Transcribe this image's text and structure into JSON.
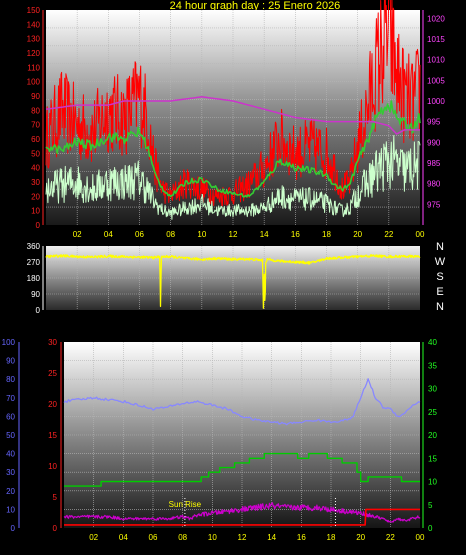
{
  "title": "24 hour graph day : 25 Enero 2026",
  "colors": {
    "gust": "#ff0000",
    "wind_avg": "#33cc33",
    "wind_low": "#ccffcc",
    "pressure": "#cc33cc",
    "direction": "#ffff00",
    "humidity": "#8888ff",
    "rain": "#ff3333",
    "temp": "#00cc00",
    "solar": "#cc00cc",
    "uv": "#ff0000",
    "time_axis": "#ffff00",
    "axis_red": "#ff2222",
    "axis_magenta": "#ff44ff",
    "axis_white": "#ffffff",
    "axis_blue": "#6666ff",
    "axis_green": "#22ff22"
  },
  "x_ticks": [
    "02",
    "04",
    "06",
    "08",
    "10",
    "12",
    "14",
    "16",
    "18",
    "20",
    "22",
    "00"
  ],
  "compass": [
    "N",
    "W",
    "S",
    "E",
    "N"
  ],
  "annotation": "Sun Rise",
  "chart_data": [
    {
      "type": "line",
      "x_range": [
        0,
        24
      ],
      "y_left_ticks": [
        "0",
        "10",
        "20",
        "30",
        "40",
        "50",
        "60",
        "70",
        "80",
        "90",
        "100",
        "110",
        "120",
        "130",
        "140",
        "150"
      ],
      "y_left_range": [
        0,
        150
      ],
      "y_right_ticks": [
        "975",
        "980",
        "985",
        "990",
        "995",
        "1000",
        "1005",
        "1010",
        "1015",
        "1020"
      ],
      "y_right_range": [
        970,
        1022
      ],
      "series": [
        {
          "key": "gust",
          "axis": "left",
          "x": [
            0,
            1,
            2,
            3,
            4,
            5,
            6,
            6.5,
            7,
            7.5,
            8,
            9,
            10,
            11,
            12,
            13,
            14,
            15,
            16,
            17,
            18,
            18.5,
            19,
            19.5,
            20,
            20.5,
            21,
            21.5,
            22,
            22.5,
            23,
            23.5,
            24
          ],
          "values": [
            60,
            80,
            70,
            65,
            80,
            75,
            90,
            75,
            40,
            25,
            20,
            30,
            25,
            20,
            22,
            28,
            40,
            60,
            50,
            55,
            50,
            40,
            25,
            30,
            55,
            75,
            100,
            120,
            135,
            105,
            90,
            85,
            95
          ]
        },
        {
          "key": "wind_avg",
          "axis": "left",
          "x": [
            0,
            1,
            2,
            3,
            4,
            5,
            6,
            6.5,
            7,
            7.5,
            8,
            9,
            10,
            11,
            12,
            13,
            14,
            15,
            16,
            17,
            18,
            18.5,
            19,
            19.5,
            20,
            20.5,
            21,
            21.5,
            22,
            22.5,
            23,
            23.5,
            24
          ],
          "values": [
            55,
            52,
            58,
            55,
            62,
            60,
            65,
            55,
            35,
            25,
            20,
            30,
            32,
            25,
            22,
            20,
            30,
            45,
            40,
            38,
            35,
            28,
            25,
            28,
            45,
            55,
            70,
            80,
            85,
            75,
            70,
            68,
            75
          ]
        },
        {
          "key": "wind_low",
          "axis": "left",
          "x": [
            0,
            1,
            2,
            3,
            4,
            5,
            6,
            6.5,
            7,
            7.5,
            8,
            9,
            10,
            11,
            12,
            13,
            14,
            15,
            16,
            17,
            18,
            18.5,
            19,
            19.5,
            20,
            20.5,
            21,
            21.5,
            22,
            22.5,
            23,
            23.5,
            24
          ],
          "values": [
            25,
            28,
            30,
            25,
            30,
            30,
            32,
            25,
            15,
            10,
            8,
            12,
            15,
            10,
            10,
            10,
            12,
            20,
            18,
            18,
            15,
            12,
            10,
            12,
            22,
            28,
            35,
            40,
            45,
            42,
            38,
            40,
            42
          ]
        },
        {
          "key": "pressure",
          "axis": "right",
          "x": [
            0,
            2,
            4,
            5,
            6,
            8,
            10,
            12,
            14,
            16,
            18,
            19,
            20,
            21,
            22,
            22.5,
            23,
            24
          ],
          "values": [
            998,
            999,
            999,
            1000,
            1000,
            1000,
            1001,
            1000,
            998,
            996,
            995,
            995,
            995,
            995,
            994,
            992,
            993,
            993
          ]
        }
      ]
    },
    {
      "type": "line",
      "x_range": [
        0,
        24
      ],
      "y_ticks": [
        "0",
        "90",
        "180",
        "270",
        "360"
      ],
      "y_range": [
        0,
        360
      ],
      "series": [
        {
          "key": "direction",
          "x": [
            0,
            1,
            2,
            3,
            4,
            5,
            6,
            7,
            7.3,
            7.35,
            7.4,
            7.45,
            7.5,
            8,
            9,
            10,
            11,
            12,
            13,
            13.9,
            13.95,
            14,
            14.05,
            14.1,
            14.2,
            15,
            16,
            17,
            18,
            19,
            20,
            21,
            22,
            23,
            24
          ],
          "values": [
            300,
            305,
            300,
            298,
            302,
            300,
            297,
            295,
            300,
            20,
            300,
            295,
            300,
            300,
            290,
            285,
            290,
            285,
            287,
            280,
            10,
            250,
            5,
            270,
            285,
            275,
            270,
            265,
            290,
            295,
            300,
            305,
            300,
            302,
            300
          ]
        }
      ]
    },
    {
      "type": "line",
      "x_range": [
        0,
        24
      ],
      "y_blue_ticks": [
        "0",
        "10",
        "20",
        "30",
        "40",
        "50",
        "60",
        "70",
        "80",
        "90",
        "100"
      ],
      "y_blue_range": [
        0,
        100
      ],
      "y_red_ticks": [
        "0",
        "5",
        "10",
        "15",
        "20",
        "25",
        "30"
      ],
      "y_red_range": [
        0,
        30
      ],
      "y_green_ticks": [
        "0",
        "5",
        "10",
        "15",
        "20",
        "25",
        "30",
        "35",
        "40"
      ],
      "y_green_range": [
        0,
        40
      ],
      "series": [
        {
          "key": "humidity",
          "axis": "blue",
          "x": [
            0,
            1,
            2,
            3,
            4,
            5,
            6,
            7,
            8,
            9,
            10,
            11,
            12,
            13,
            14,
            15,
            16,
            17,
            18,
            19,
            19.5,
            20,
            20.5,
            21,
            21.5,
            22,
            22.5,
            23,
            23.5,
            24
          ],
          "values": [
            68,
            69,
            70,
            69,
            68,
            66,
            64,
            65,
            67,
            68,
            66,
            64,
            60,
            58,
            57,
            56,
            57,
            58,
            57,
            58,
            60,
            70,
            80,
            70,
            65,
            64,
            60,
            62,
            66,
            68
          ]
        },
        {
          "key": "temp",
          "axis": "green",
          "x": [
            0,
            1,
            2,
            3,
            4,
            5,
            6,
            7,
            8,
            8.5,
            9,
            10,
            11,
            12,
            13,
            14,
            15,
            16,
            17,
            18,
            19,
            19.5,
            20,
            21,
            22,
            23,
            24
          ],
          "values": [
            9,
            9,
            9,
            10,
            10,
            10,
            10,
            10,
            10,
            10,
            10,
            12,
            13,
            14,
            15,
            16,
            16,
            15,
            16,
            15,
            14,
            14,
            10,
            11,
            11,
            10,
            10
          ]
        },
        {
          "key": "solar",
          "axis": "blue",
          "x": [
            0,
            1,
            2,
            3,
            4,
            5,
            6,
            7,
            8,
            8.5,
            9,
            10,
            11,
            12,
            13,
            14,
            15,
            16,
            17,
            18,
            19,
            20,
            20.5,
            21,
            21.5,
            22,
            22.5,
            23,
            23.5,
            24
          ],
          "values": [
            6,
            6,
            6,
            6,
            5,
            5,
            5,
            5,
            6,
            5,
            7,
            8,
            9,
            10,
            11,
            12,
            11,
            11,
            11,
            10,
            9,
            8,
            7,
            6,
            5,
            3,
            5,
            4,
            5,
            6
          ]
        },
        {
          "key": "uv",
          "axis": "red",
          "x": [
            0,
            8,
            20,
            20.3,
            20.35,
            24
          ],
          "values": [
            0.5,
            0.5,
            0.5,
            0.5,
            3,
            3
          ]
        }
      ]
    }
  ]
}
